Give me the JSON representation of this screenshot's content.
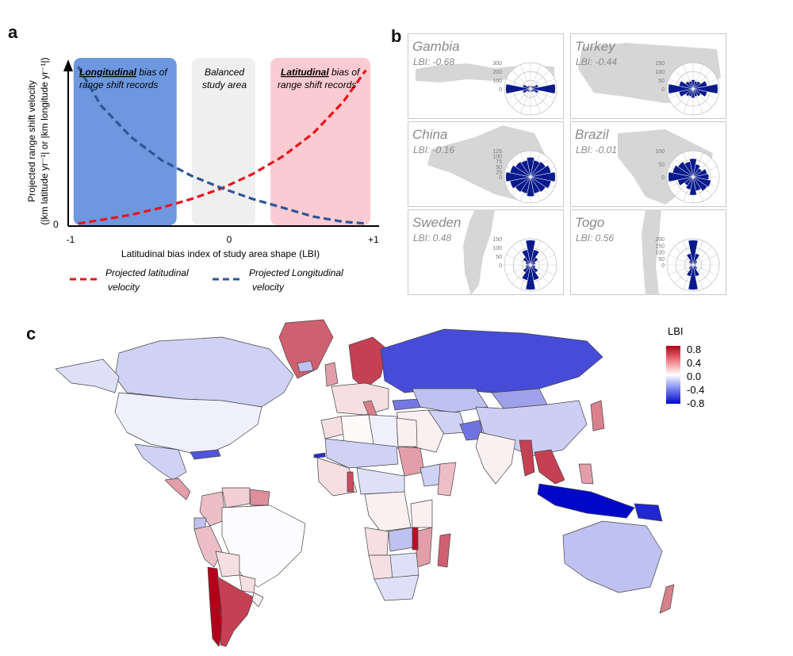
{
  "panels": {
    "a": {
      "letter": "a"
    },
    "b": {
      "letter": "b"
    },
    "c": {
      "letter": "c"
    }
  },
  "chart_data": [
    {
      "id": "a",
      "type": "line",
      "ylabel_line1": "Projected range shift velocity",
      "ylabel_line2": "(|km latitude yr⁻¹| or |km longitude yr⁻¹|)",
      "xlabel": "Latitudinal bias index of study area shape (LBI)",
      "xticks": [
        "-1",
        "0",
        "+1"
      ],
      "ytick_zero": "0",
      "xlim": [
        -1,
        1
      ],
      "regions": [
        {
          "name": "longitudinal",
          "x_range": [
            -0.98,
            -0.3
          ],
          "color": "#6d97df",
          "text_bold": "Longitudinal",
          "text_rest1": " bias of",
          "text_line2": "range shift records"
        },
        {
          "name": "balanced",
          "x_range": [
            -0.2,
            0.22
          ],
          "color": "#efefef",
          "text_line1": "Balanced",
          "text_line2": "study area"
        },
        {
          "name": "latitudinal",
          "x_range": [
            0.32,
            0.98
          ],
          "color": "#fbcbd3",
          "text_bold": "Latitudinal",
          "text_rest1": " bias of",
          "text_line2": "range shift records"
        }
      ],
      "series": [
        {
          "name": "Projected latitudinal velocity",
          "legend_line1": "Projected latitudinal",
          "legend_line2": "velocity",
          "color": "#e8141b",
          "dash": true,
          "x": [
            -0.95,
            -0.8,
            -0.6,
            -0.4,
            -0.2,
            0.0,
            0.2,
            0.4,
            0.6,
            0.8,
            0.95
          ],
          "values": [
            0.01,
            0.03,
            0.06,
            0.1,
            0.15,
            0.21,
            0.29,
            0.39,
            0.52,
            0.7,
            0.88
          ]
        },
        {
          "name": "Projected Longitudinal velocity",
          "legend_line1": "Projected Longitudinal",
          "legend_line2": "velocity",
          "color": "#2f5597",
          "dash": true,
          "x": [
            -0.95,
            -0.8,
            -0.6,
            -0.4,
            -0.2,
            0.0,
            0.2,
            0.4,
            0.6,
            0.8,
            0.95
          ],
          "values": [
            0.9,
            0.68,
            0.5,
            0.37,
            0.28,
            0.21,
            0.15,
            0.1,
            0.05,
            0.02,
            0.01
          ]
        }
      ]
    },
    {
      "id": "b",
      "type": "rose",
      "insets": [
        {
          "country": "Gambia",
          "lbi": "LBI: -0.68",
          "ticks": [
            "300",
            "200",
            "100",
            "0"
          ],
          "petals": [
            0.12,
            0.12,
            0.15,
            0.3,
            0.95,
            0.3,
            0.15,
            0.12,
            0.12,
            0.12,
            0.15,
            0.3,
            0.95,
            0.3,
            0.15,
            0.12
          ]
        },
        {
          "country": "Turkey",
          "lbi": "LBI: -0.44",
          "ticks": [
            "150",
            "100",
            "50",
            "0"
          ],
          "petals": [
            0.35,
            0.3,
            0.35,
            0.55,
            0.95,
            0.55,
            0.35,
            0.3,
            0.35,
            0.3,
            0.35,
            0.55,
            0.95,
            0.55,
            0.35,
            0.3
          ]
        },
        {
          "country": "China",
          "lbi": "LBI: -0.16",
          "ticks": [
            "125",
            "100",
            "75",
            "50",
            "25",
            "0"
          ],
          "petals": [
            0.75,
            0.65,
            0.7,
            0.8,
            0.95,
            0.8,
            0.7,
            0.65,
            0.75,
            0.65,
            0.7,
            0.8,
            0.95,
            0.8,
            0.7,
            0.65
          ]
        },
        {
          "country": "Brazil",
          "lbi": "LBI: -0.01",
          "ticks": [
            "100",
            "50",
            "0"
          ],
          "petals": [
            0.7,
            0.5,
            0.4,
            0.55,
            0.6,
            0.7,
            0.65,
            0.55,
            0.7,
            0.5,
            0.4,
            0.6,
            0.95,
            0.8,
            0.7,
            0.6
          ]
        },
        {
          "country": "Sweden",
          "lbi": "LBI: 0.48",
          "ticks": [
            "150",
            "100",
            "50",
            "0"
          ],
          "petals": [
            0.95,
            0.6,
            0.35,
            0.2,
            0.15,
            0.2,
            0.35,
            0.6,
            0.95,
            0.6,
            0.35,
            0.2,
            0.15,
            0.2,
            0.35,
            0.6
          ]
        },
        {
          "country": "Togo",
          "lbi": "LBI: 0.56",
          "ticks": [
            "200",
            "150",
            "100",
            "50",
            "0"
          ],
          "petals": [
            0.95,
            0.45,
            0.2,
            0.12,
            0.1,
            0.12,
            0.2,
            0.45,
            0.95,
            0.45,
            0.2,
            0.12,
            0.1,
            0.12,
            0.2,
            0.45
          ]
        }
      ]
    },
    {
      "id": "c",
      "type": "choropleth",
      "legend_title": "LBI",
      "legend_ticks": [
        "0.8",
        "0.4",
        "0.0",
        "-0.4",
        "-0.8"
      ],
      "legend_range": [
        -0.8,
        0.8
      ],
      "regions": [
        {
          "name": "Greenland",
          "lbi": 0.5
        },
        {
          "name": "Canada",
          "lbi": -0.15
        },
        {
          "name": "Alaska",
          "lbi": -0.1
        },
        {
          "name": "United States",
          "lbi": -0.05
        },
        {
          "name": "Mexico",
          "lbi": -0.15
        },
        {
          "name": "Central America",
          "lbi": 0.3
        },
        {
          "name": "Caribbean",
          "lbi": -0.55
        },
        {
          "name": "Colombia",
          "lbi": 0.2
        },
        {
          "name": "Venezuela",
          "lbi": 0.15
        },
        {
          "name": "Guianas",
          "lbi": 0.35
        },
        {
          "name": "Ecuador",
          "lbi": -0.2
        },
        {
          "name": "Peru",
          "lbi": 0.2
        },
        {
          "name": "Brazil",
          "lbi": -0.01
        },
        {
          "name": "Bolivia",
          "lbi": 0.1
        },
        {
          "name": "Paraguay",
          "lbi": 0.1
        },
        {
          "name": "Chile",
          "lbi": 0.8
        },
        {
          "name": "Argentina",
          "lbi": 0.6
        },
        {
          "name": "Uruguay",
          "lbi": 0.05
        },
        {
          "name": "Iceland",
          "lbi": -0.2
        },
        {
          "name": "Scandinavia",
          "lbi": 0.6
        },
        {
          "name": "United Kingdom",
          "lbi": 0.3
        },
        {
          "name": "Western Europe",
          "lbi": 0.1
        },
        {
          "name": "Italy",
          "lbi": 0.4
        },
        {
          "name": "Russia",
          "lbi": -0.58
        },
        {
          "name": "Turkey",
          "lbi": -0.44
        },
        {
          "name": "Kazakhstan",
          "lbi": -0.2
        },
        {
          "name": "Mongolia",
          "lbi": -0.3
        },
        {
          "name": "China",
          "lbi": -0.16
        },
        {
          "name": "Middle East",
          "lbi": 0.05
        },
        {
          "name": "Iran",
          "lbi": -0.15
        },
        {
          "name": "Pakistan",
          "lbi": -0.45
        },
        {
          "name": "India",
          "lbi": 0.05
        },
        {
          "name": "Myanmar",
          "lbi": 0.6
        },
        {
          "name": "Vietnam",
          "lbi": 0.6
        },
        {
          "name": "Japan",
          "lbi": 0.4
        },
        {
          "name": "Indonesia",
          "lbi": -0.8
        },
        {
          "name": "Philippines",
          "lbi": 0.3
        },
        {
          "name": "Papua New Guinea",
          "lbi": -0.7
        },
        {
          "name": "Australia",
          "lbi": -0.2
        },
        {
          "name": "New Zealand",
          "lbi": 0.4
        },
        {
          "name": "Morocco",
          "lbi": 0.1
        },
        {
          "name": "Algeria",
          "lbi": 0.02
        },
        {
          "name": "Libya",
          "lbi": -0.05
        },
        {
          "name": "Egypt",
          "lbi": 0.05
        },
        {
          "name": "Sahel",
          "lbi": -0.15
        },
        {
          "name": "West Africa",
          "lbi": 0.1
        },
        {
          "name": "Togo",
          "lbi": 0.56
        },
        {
          "name": "Gambia",
          "lbi": -0.68
        },
        {
          "name": "Sudan",
          "lbi": 0.3
        },
        {
          "name": "Ethiopia",
          "lbi": -0.15
        },
        {
          "name": "Somalia",
          "lbi": 0.2
        },
        {
          "name": "Central Africa",
          "lbi": -0.1
        },
        {
          "name": "Congo",
          "lbi": 0.05
        },
        {
          "name": "Tanzania",
          "lbi": 0.05
        },
        {
          "name": "Angola",
          "lbi": 0.1
        },
        {
          "name": "Zambia",
          "lbi": -0.2
        },
        {
          "name": "Mozambique",
          "lbi": 0.3
        },
        {
          "name": "Malawi",
          "lbi": 0.75
        },
        {
          "name": "Madagascar",
          "lbi": 0.5
        },
        {
          "name": "Southern Africa",
          "lbi": -0.1
        },
        {
          "name": "Namibia",
          "lbi": 0.1
        },
        {
          "name": "South Africa",
          "lbi": -0.1
        }
      ]
    }
  ]
}
